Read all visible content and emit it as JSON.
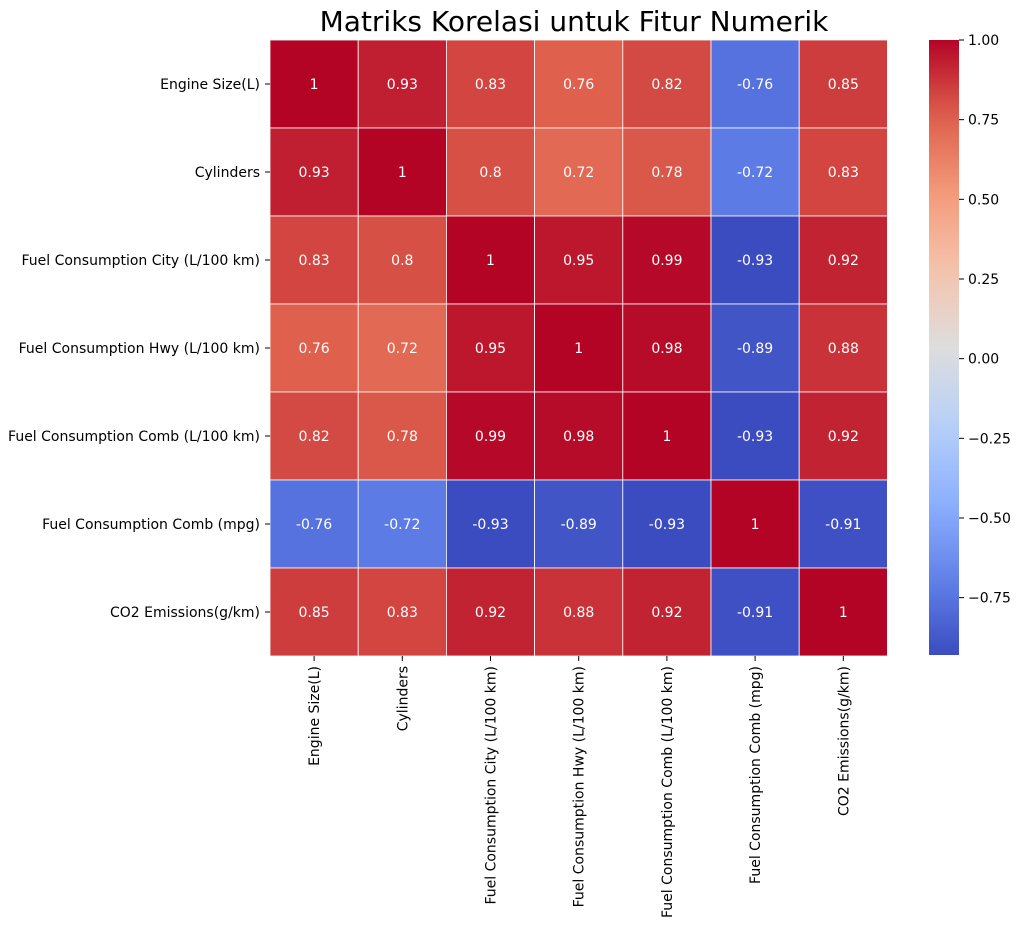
{
  "chart_data": {
    "type": "heatmap",
    "title": "Matriks Korelasi untuk Fitur Numerik",
    "labels": [
      "Engine Size(L)",
      "Cylinders",
      "Fuel Consumption City (L/100 km)",
      "Fuel Consumption Hwy (L/100 km)",
      "Fuel Consumption Comb (L/100 km)",
      "Fuel Consumption Comb (mpg)",
      "CO2 Emissions(g/km)"
    ],
    "values": [
      [
        1,
        0.93,
        0.83,
        0.76,
        0.82,
        -0.76,
        0.85
      ],
      [
        0.93,
        1,
        0.8,
        0.72,
        0.78,
        -0.72,
        0.83
      ],
      [
        0.83,
        0.8,
        1,
        0.95,
        0.99,
        -0.93,
        0.92
      ],
      [
        0.76,
        0.72,
        0.95,
        1,
        0.98,
        -0.89,
        0.88
      ],
      [
        0.82,
        0.78,
        0.99,
        0.98,
        1,
        -0.93,
        0.92
      ],
      [
        -0.76,
        -0.72,
        -0.93,
        -0.89,
        -0.93,
        1,
        -0.91
      ],
      [
        0.85,
        0.83,
        0.92,
        0.88,
        0.92,
        -0.91,
        1
      ]
    ],
    "colormap": "coolwarm",
    "value_range": [
      -0.93,
      1.0
    ],
    "colorbar_ticks": [
      "1.00",
      "0.75",
      "0.50",
      "0.25",
      "0.00",
      "−0.25",
      "−0.50",
      "−0.75"
    ],
    "colorbar_tick_values": [
      1.0,
      0.75,
      0.5,
      0.25,
      0.0,
      -0.25,
      -0.5,
      -0.75
    ],
    "annotated": true,
    "cell_border_color": "#ffffff"
  }
}
